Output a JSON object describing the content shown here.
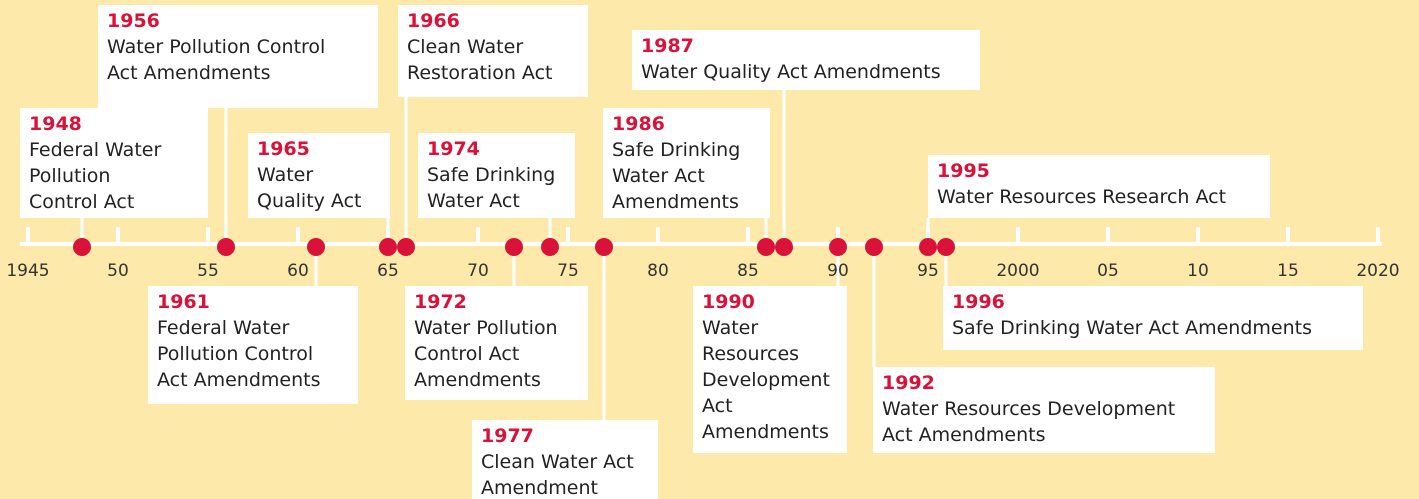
{
  "axis": {
    "min": 1945,
    "max": 2020,
    "ticks": [
      1945,
      {
        "value": 1950,
        "label": "50"
      },
      {
        "value": 1955,
        "label": "55"
      },
      {
        "value": 1960,
        "label": "60"
      },
      {
        "value": 1965,
        "label": "65"
      },
      {
        "value": 1970,
        "label": "70"
      },
      {
        "value": 1975,
        "label": "75"
      },
      {
        "value": 1980,
        "label": "80"
      },
      {
        "value": 1985,
        "label": "85"
      },
      {
        "value": 1990,
        "label": "90"
      },
      {
        "value": 1995,
        "label": "95"
      },
      2000,
      {
        "value": 2005,
        "label": "05"
      },
      {
        "value": 2010,
        "label": "10"
      },
      {
        "value": 2015,
        "label": "15"
      },
      2020
    ]
  },
  "events": [
    {
      "year": 1948,
      "lines": [
        "Federal Water",
        "Pollution",
        "Control Act"
      ]
    },
    {
      "year": 1956,
      "lines": [
        "Water Pollution Control",
        "Act Amendments"
      ]
    },
    {
      "year": 1961,
      "lines": [
        "Federal Water",
        "Pollution Control",
        "Act Amendments"
      ]
    },
    {
      "year": 1965,
      "lines": [
        "Water",
        "Quality Act"
      ]
    },
    {
      "year": 1966,
      "lines": [
        "Clean Water",
        "Restoration Act"
      ]
    },
    {
      "year": 1972,
      "lines": [
        "Water Pollution",
        "Control Act",
        "Amendments"
      ]
    },
    {
      "year": 1974,
      "lines": [
        "Safe Drinking",
        "Water Act"
      ]
    },
    {
      "year": 1977,
      "lines": [
        "Clean Water Act",
        "Amendment"
      ]
    },
    {
      "year": 1986,
      "lines": [
        "Safe Drinking",
        "Water Act",
        "Amendments"
      ]
    },
    {
      "year": 1987,
      "lines": [
        "Water Quality Act Amendments"
      ]
    },
    {
      "year": 1990,
      "lines": [
        "Water",
        "Resources",
        "Development",
        "Act",
        "Amendments"
      ]
    },
    {
      "year": 1992,
      "lines": [
        "Water Resources Development",
        "Act Amendments"
      ]
    },
    {
      "year": 1995,
      "lines": [
        "Water Resources Research Act"
      ]
    },
    {
      "year": 1996,
      "lines": [
        "Safe Drinking Water Act Amendments"
      ]
    }
  ]
}
